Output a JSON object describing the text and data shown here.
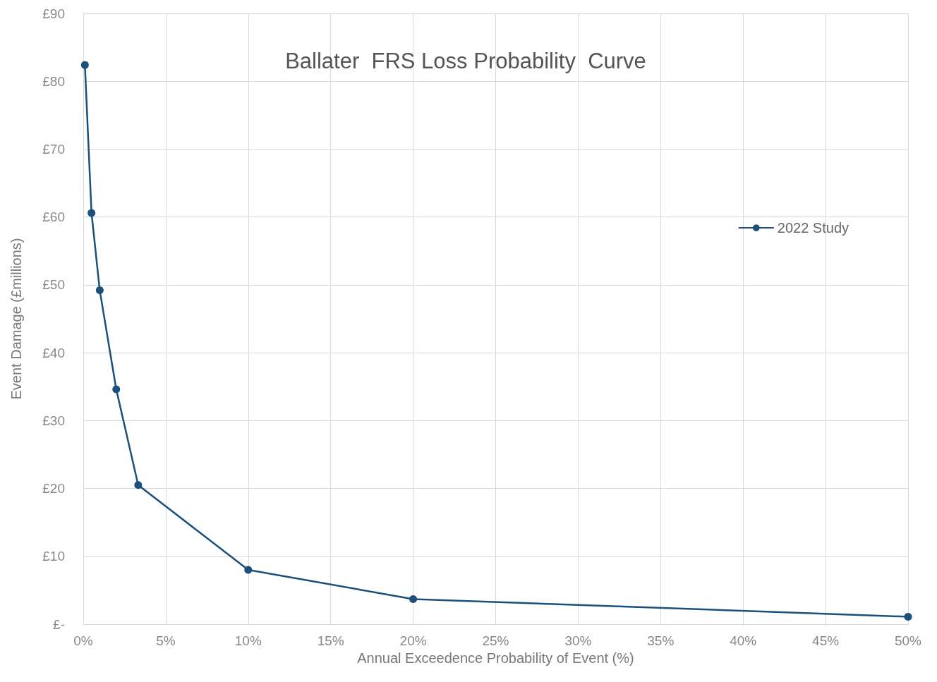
{
  "chart_data": {
    "type": "line",
    "title": "Ballater  FRS Loss Probability  Curve",
    "xlabel": "Annual Exceedence Probability of Event (%)",
    "ylabel": "Event Damage (£millions)",
    "series": [
      {
        "name": "2022 Study",
        "color": "#1b4f7c",
        "x": [
          0.1,
          0.5,
          1,
          2,
          3.33,
          10,
          20,
          50
        ],
        "values": [
          82.4,
          60.6,
          49.2,
          34.6,
          20.5,
          8.0,
          3.7,
          1.1
        ]
      }
    ],
    "xlim": [
      0,
      50
    ],
    "xticks": [
      {
        "value": 0,
        "label": "0%"
      },
      {
        "value": 5,
        "label": "5%"
      },
      {
        "value": 10,
        "label": "10%"
      },
      {
        "value": 15,
        "label": "15%"
      },
      {
        "value": 20,
        "label": "20%"
      },
      {
        "value": 25,
        "label": "25%"
      },
      {
        "value": 30,
        "label": "30%"
      },
      {
        "value": 35,
        "label": "35%"
      },
      {
        "value": 40,
        "label": "40%"
      },
      {
        "value": 45,
        "label": "45%"
      },
      {
        "value": 50,
        "label": "50%"
      }
    ],
    "ylim": [
      0,
      90
    ],
    "yticks": [
      {
        "value": 0,
        "label": "£-"
      },
      {
        "value": 10,
        "label": "£10"
      },
      {
        "value": 20,
        "label": "£20"
      },
      {
        "value": 30,
        "label": "£30"
      },
      {
        "value": 40,
        "label": "£40"
      },
      {
        "value": 50,
        "label": "£50"
      },
      {
        "value": 60,
        "label": "£60"
      },
      {
        "value": 70,
        "label": "£70"
      },
      {
        "value": 80,
        "label": "£80"
      },
      {
        "value": 90,
        "label": "£90"
      }
    ],
    "grid": true,
    "legend": "right",
    "marker": "circle",
    "line_style": "solid"
  }
}
